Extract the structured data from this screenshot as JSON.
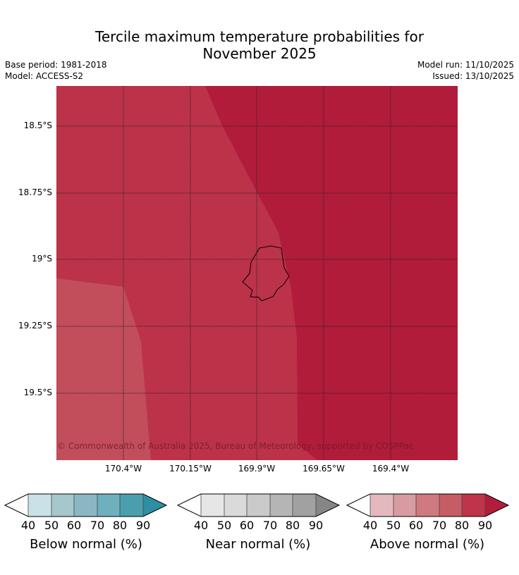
{
  "title_line1": "Tercile maximum temperature probabilities for",
  "title_line2": "November 2025",
  "meta": {
    "base_period": "Base period: 1981-2018",
    "model": "Model: ACCESS-S2",
    "model_run": "Model run: 11/10/2025",
    "issued": "Issued: 13/10/2025"
  },
  "map": {
    "lat_labels": [
      "18.5°S",
      "18.75°S",
      "19°S",
      "19.25°S",
      "19.5°S"
    ],
    "lon_labels": [
      "170.4°W",
      "170.15°W",
      "169.9°W",
      "169.65°W",
      "169.4°W"
    ],
    "copyright": "© Commonwealth of Australia 2025, Bureau of Meteorology, supported by COSPPac",
    "region_colors": {
      "above_60_70": "#c24d5b",
      "above_70_80": "#bc3249",
      "above_80_90": "#b11c3b"
    },
    "island_name": "niue-island"
  },
  "colorbars": [
    {
      "name": "Below normal (%)",
      "ticks": [
        "40",
        "50",
        "60",
        "70",
        "80",
        "90"
      ],
      "colors": [
        "#ffffff",
        "#c9e1e7",
        "#a6c7cc",
        "#8ab7c3",
        "#6fb0be",
        "#4a9eae",
        "#2e8ea3"
      ]
    },
    {
      "name": "Near normal (%)",
      "ticks": [
        "40",
        "50",
        "60",
        "70",
        "80",
        "90"
      ],
      "colors": [
        "#ffffff",
        "#e6e6e6",
        "#dadada",
        "#cacaca",
        "#b5b5b5",
        "#a1a1a1",
        "#868686"
      ]
    },
    {
      "name": "Above normal (%)",
      "ticks": [
        "40",
        "50",
        "60",
        "70",
        "80",
        "90"
      ],
      "colors": [
        "#ffffff",
        "#e3b9be",
        "#d89ba1",
        "#d0797f",
        "#c55c66",
        "#be3449",
        "#b21d3b"
      ]
    }
  ]
}
